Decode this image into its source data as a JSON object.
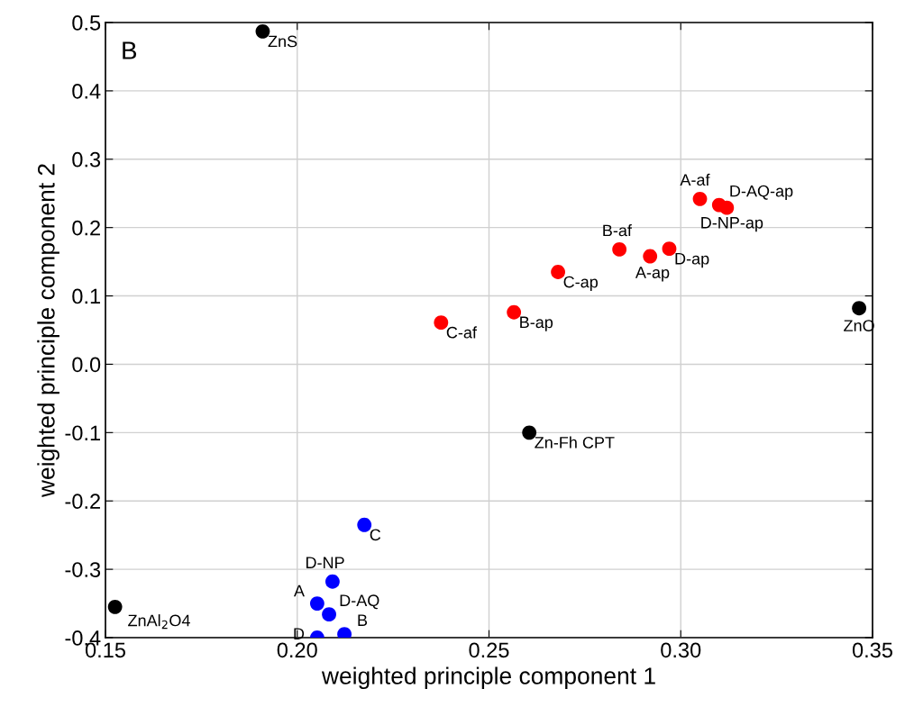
{
  "chart_data": {
    "type": "scatter",
    "xlabel": "weighted principle component 1",
    "ylabel": "weighted principle component 2",
    "series": [
      {
        "color": "#000000",
        "x": [
          0.191,
          0.3465,
          0.2605,
          0.1525
        ],
        "values": [
          0.487,
          0.082,
          -0.1,
          -0.355
        ]
      },
      {
        "color": "#ff0000",
        "x": [
          0.2375,
          0.2565,
          0.268,
          0.284,
          0.292,
          0.297,
          0.305,
          0.31,
          0.312
        ],
        "values": [
          0.061,
          0.076,
          0.135,
          0.168,
          0.158,
          0.169,
          0.242,
          0.233,
          0.229
        ]
      },
      {
        "color": "#0000ff",
        "x": [
          0.2175,
          0.2092,
          0.2052,
          0.2083,
          0.2052,
          0.2123
        ],
        "values": [
          -0.235,
          -0.318,
          -0.35,
          -0.366,
          -0.4,
          -0.395
        ]
      }
    ],
    "annotations": [
      "B",
      {
        "text": "ZnS",
        "x": 0.191,
        "y": 0.487
      },
      {
        "text": "ZnO",
        "x": 0.3465,
        "y": 0.082
      },
      {
        "text": "Zn-Fh CPT",
        "x": 0.2605,
        "y": -0.1
      },
      {
        "text": "ZnAl$_{2}$O4",
        "x": 0.1525,
        "y": -0.355
      },
      {
        "text": "C-af",
        "x": 0.2375,
        "y": 0.061
      },
      {
        "text": "B-ap",
        "x": 0.2565,
        "y": 0.076
      },
      {
        "text": "C-ap",
        "x": 0.268,
        "y": 0.135
      },
      {
        "text": "B-af",
        "x": 0.284,
        "y": 0.168
      },
      {
        "text": "A-ap",
        "x": 0.292,
        "y": 0.158
      },
      {
        "text": "D-ap",
        "x": 0.297,
        "y": 0.169
      },
      {
        "text": "A-af",
        "x": 0.305,
        "y": 0.242
      },
      {
        "text": "D-AQ-ap",
        "x": 0.31,
        "y": 0.233
      },
      {
        "text": "D-NP-ap",
        "x": 0.312,
        "y": 0.229
      },
      {
        "text": "C",
        "x": 0.2175,
        "y": -0.235
      },
      {
        "text": "D-NP",
        "x": 0.2092,
        "y": -0.318
      },
      {
        "text": "A",
        "x": 0.2052,
        "y": -0.35
      },
      {
        "text": "D-AQ",
        "x": 0.2083,
        "y": -0.366
      },
      {
        "text": "D",
        "x": 0.2052,
        "y": -0.4
      },
      {
        "text": "B",
        "x": 0.2123,
        "y": -0.395
      }
    ],
    "xlim": [
      0.15,
      0.35
    ],
    "xticks": [
      {
        "value": 0.15,
        "label": "0.15"
      },
      {
        "value": 0.2,
        "label": "0.20"
      },
      {
        "value": 0.25,
        "label": "0.25"
      },
      {
        "value": 0.3,
        "label": "0.30"
      },
      {
        "value": 0.35,
        "label": "0.35"
      }
    ],
    "ylim": [
      -0.4,
      0.5
    ],
    "yticks": [
      {
        "value": -0.4,
        "label": "-0.4"
      },
      {
        "value": -0.3,
        "label": "-0.3"
      },
      {
        "value": -0.2,
        "label": "-0.2"
      },
      {
        "value": -0.1,
        "label": "-0.1"
      },
      {
        "value": 0.0,
        "label": "0.0"
      },
      0.1,
      0.2,
      0.3,
      0.4,
      0.5
    ],
    "grid": true,
    "marker": "circle"
  }
}
